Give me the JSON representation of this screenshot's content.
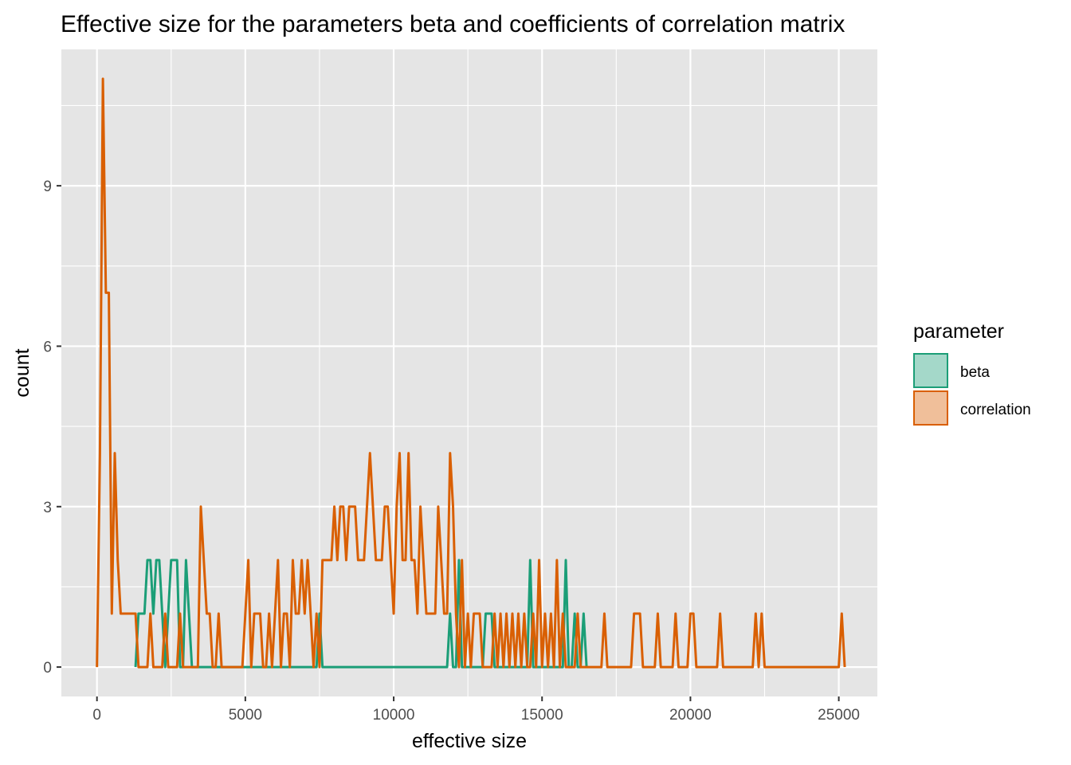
{
  "chart_data": {
    "type": "line",
    "geom": "frequency polygon (histogram step outline)",
    "title": "Effective size for the parameters beta and coefficients of correlation matrix",
    "xlabel": "effective size",
    "ylabel": "count",
    "xlim": [
      -1200,
      26300
    ],
    "ylim": [
      -0.55,
      11.55
    ],
    "x_ticks": [
      0,
      5000,
      10000,
      15000,
      20000,
      25000
    ],
    "y_ticks": [
      0,
      3,
      6,
      9
    ],
    "bin_width": 100,
    "legend": {
      "title": "parameter",
      "position": "right"
    },
    "background": "#e5e5e5",
    "grid": true,
    "series": [
      {
        "name": "beta",
        "color": "#1b9e77",
        "points": [
          [
            1400,
            1
          ],
          [
            1450,
            1
          ],
          [
            1550,
            1
          ],
          [
            1650,
            2
          ],
          [
            1750,
            2
          ],
          [
            1850,
            1
          ],
          [
            1950,
            2
          ],
          [
            2050,
            2
          ],
          [
            2150,
            1
          ],
          [
            2350,
            1
          ],
          [
            2450,
            2
          ],
          [
            2550,
            2
          ],
          [
            2650,
            2
          ],
          [
            2950,
            2
          ],
          [
            3050,
            1
          ],
          [
            7450,
            1
          ],
          [
            11850,
            1
          ],
          [
            12150,
            2
          ],
          [
            13050,
            1
          ],
          [
            13150,
            1
          ],
          [
            13250,
            1
          ],
          [
            14550,
            2
          ],
          [
            15750,
            2
          ],
          [
            16050,
            1
          ],
          [
            16350,
            1
          ]
        ]
      },
      {
        "name": "correlation",
        "color": "#d95f02",
        "points": [
          [
            50,
            4
          ],
          [
            150,
            11
          ],
          [
            250,
            7
          ],
          [
            350,
            7
          ],
          [
            450,
            1
          ],
          [
            550,
            4
          ],
          [
            650,
            2
          ],
          [
            750,
            1
          ],
          [
            850,
            1
          ],
          [
            950,
            1
          ],
          [
            1050,
            1
          ],
          [
            1150,
            1
          ],
          [
            1250,
            1
          ],
          [
            1750,
            1
          ],
          [
            2250,
            1
          ],
          [
            2750,
            1
          ],
          [
            3450,
            3
          ],
          [
            3550,
            2
          ],
          [
            3650,
            1
          ],
          [
            3750,
            1
          ],
          [
            4050,
            1
          ],
          [
            4950,
            1
          ],
          [
            5050,
            2
          ],
          [
            5250,
            1
          ],
          [
            5350,
            1
          ],
          [
            5450,
            1
          ],
          [
            5750,
            1
          ],
          [
            5950,
            1
          ],
          [
            6050,
            2
          ],
          [
            6250,
            1
          ],
          [
            6350,
            1
          ],
          [
            6550,
            2
          ],
          [
            6650,
            1
          ],
          [
            6750,
            1
          ],
          [
            6850,
            2
          ],
          [
            6950,
            1
          ],
          [
            7050,
            2
          ],
          [
            7150,
            1
          ],
          [
            7350,
            1
          ],
          [
            7550,
            2
          ],
          [
            7650,
            2
          ],
          [
            7750,
            2
          ],
          [
            7850,
            2
          ],
          [
            7950,
            3
          ],
          [
            8050,
            2
          ],
          [
            8150,
            3
          ],
          [
            8250,
            3
          ],
          [
            8350,
            2
          ],
          [
            8450,
            3
          ],
          [
            8550,
            3
          ],
          [
            8650,
            3
          ],
          [
            8750,
            2
          ],
          [
            8850,
            2
          ],
          [
            8950,
            2
          ],
          [
            9050,
            3
          ],
          [
            9150,
            4
          ],
          [
            9250,
            3
          ],
          [
            9350,
            2
          ],
          [
            9450,
            2
          ],
          [
            9550,
            2
          ],
          [
            9650,
            3
          ],
          [
            9750,
            3
          ],
          [
            9850,
            2
          ],
          [
            9950,
            1
          ],
          [
            10050,
            3
          ],
          [
            10150,
            4
          ],
          [
            10250,
            2
          ],
          [
            10350,
            2
          ],
          [
            10450,
            4
          ],
          [
            10550,
            2
          ],
          [
            10650,
            2
          ],
          [
            10750,
            1
          ],
          [
            10850,
            3
          ],
          [
            10950,
            2
          ],
          [
            11050,
            1
          ],
          [
            11150,
            1
          ],
          [
            11250,
            1
          ],
          [
            11350,
            1
          ],
          [
            11450,
            3
          ],
          [
            11550,
            2
          ],
          [
            11650,
            1
          ],
          [
            11750,
            1
          ],
          [
            11850,
            4
          ],
          [
            11950,
            3
          ],
          [
            12050,
            1
          ],
          [
            12250,
            2
          ],
          [
            12450,
            1
          ],
          [
            12650,
            1
          ],
          [
            12750,
            1
          ],
          [
            12850,
            1
          ],
          [
            13350,
            1
          ],
          [
            13550,
            1
          ],
          [
            13750,
            1
          ],
          [
            13950,
            1
          ],
          [
            14150,
            1
          ],
          [
            14350,
            1
          ],
          [
            14650,
            1
          ],
          [
            14850,
            2
          ],
          [
            15050,
            1
          ],
          [
            15250,
            1
          ],
          [
            15450,
            2
          ],
          [
            15650,
            1
          ],
          [
            16150,
            1
          ],
          [
            17050,
            1
          ],
          [
            18050,
            1
          ],
          [
            18150,
            1
          ],
          [
            18250,
            1
          ],
          [
            18850,
            1
          ],
          [
            19450,
            1
          ],
          [
            19950,
            1
          ],
          [
            20050,
            1
          ],
          [
            20950,
            1
          ],
          [
            22150,
            1
          ],
          [
            22350,
            1
          ],
          [
            25050,
            1
          ]
        ]
      }
    ]
  }
}
